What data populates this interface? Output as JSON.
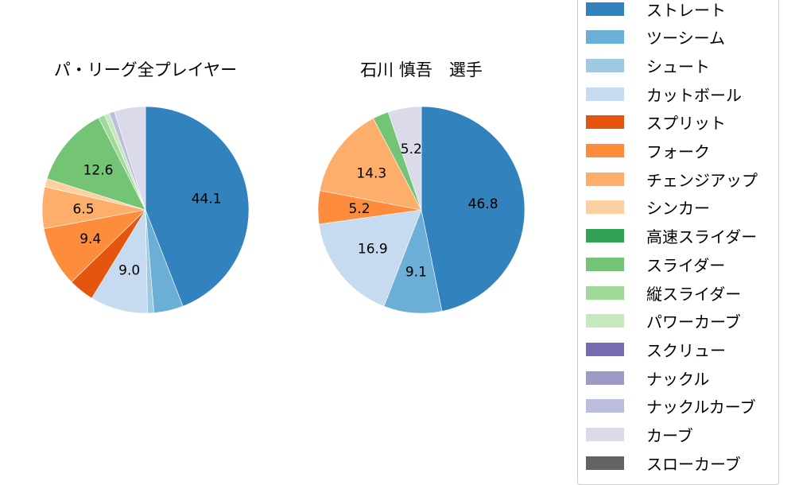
{
  "chart_data": [
    {
      "type": "pie",
      "title": "パ・リーグ全プレイヤー",
      "categories": [
        "ストレート",
        "ツーシーム",
        "シュート",
        "カットボール",
        "スプリット",
        "フォーク",
        "チェンジアップ",
        "シンカー",
        "スライダー",
        "縦スライダー",
        "パワーカーブ",
        "ナックルカーブ",
        "カーブ"
      ],
      "values": [
        44.1,
        4.6,
        1.0,
        9.0,
        4.0,
        9.4,
        6.5,
        1.3,
        12.6,
        1.0,
        0.8,
        0.8,
        4.9
      ],
      "labels_shown": [
        "44.1",
        "9.0",
        "9.4",
        "12.6"
      ]
    },
    {
      "type": "pie",
      "title": "石川 慎吾　選手",
      "categories": [
        "ストレート",
        "ツーシーム",
        "カットボール",
        "フォーク",
        "チェンジアップ",
        "スライダー",
        "カーブ"
      ],
      "values": [
        46.8,
        9.1,
        16.9,
        5.2,
        14.3,
        2.5,
        5.2
      ],
      "labels_shown": [
        "46.8",
        "9.1",
        "16.9",
        "5.2",
        "14.3",
        "5.2"
      ]
    }
  ],
  "legend": [
    {
      "label": "ストレート",
      "color": "#3182bd"
    },
    {
      "label": "ツーシーム",
      "color": "#6baed6"
    },
    {
      "label": "シュート",
      "color": "#9ecae1"
    },
    {
      "label": "カットボール",
      "color": "#c6dbef"
    },
    {
      "label": "スプリット",
      "color": "#e6550d"
    },
    {
      "label": "フォーク",
      "color": "#fd8d3c"
    },
    {
      "label": "チェンジアップ",
      "color": "#fdae6b"
    },
    {
      "label": "シンカー",
      "color": "#fdd0a2"
    },
    {
      "label": "高速スライダー",
      "color": "#31a354"
    },
    {
      "label": "スライダー",
      "color": "#74c476"
    },
    {
      "label": "縦スライダー",
      "color": "#a1d99b"
    },
    {
      "label": "パワーカーブ",
      "color": "#c7e9c0"
    },
    {
      "label": "スクリュー",
      "color": "#756bb1"
    },
    {
      "label": "ナックル",
      "color": "#9e9ac8"
    },
    {
      "label": "ナックルカーブ",
      "color": "#bcbddc"
    },
    {
      "label": "カーブ",
      "color": "#dadaeb"
    },
    {
      "label": "スローカーブ",
      "color": "#636363"
    }
  ]
}
